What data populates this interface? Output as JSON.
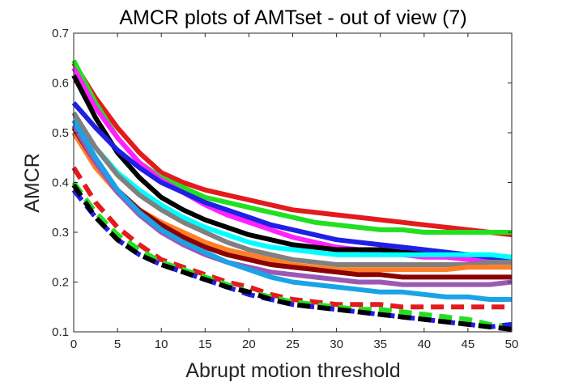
{
  "chart_data": {
    "type": "line",
    "title": "AMCR plots of AMTset - out of view (7)",
    "xlabel": "Abrupt motion threshold",
    "ylabel": "AMCR",
    "xlim": [
      0,
      50
    ],
    "ylim": [
      0.1,
      0.7
    ],
    "xticks": [
      "0",
      "5",
      "10",
      "15",
      "20",
      "25",
      "30",
      "35",
      "40",
      "45",
      "50"
    ],
    "yticks": [
      "0.1",
      "0.2",
      "0.3",
      "0.4",
      "0.5",
      "0.6",
      "0.7"
    ],
    "grid": false,
    "x": [
      0,
      2.5,
      5,
      7.5,
      10,
      12.5,
      15,
      17.5,
      20,
      22.5,
      25,
      27.5,
      30,
      32.5,
      35,
      37.5,
      40,
      42.5,
      45,
      47.5,
      50
    ],
    "series": [
      {
        "color": "#e41a1c",
        "dashed": false,
        "values": [
          0.64,
          0.57,
          0.51,
          0.46,
          0.42,
          0.4,
          0.385,
          0.375,
          0.365,
          0.355,
          0.345,
          0.34,
          0.335,
          0.33,
          0.325,
          0.32,
          0.315,
          0.31,
          0.305,
          0.3,
          0.295
        ]
      },
      {
        "color": "#22e01f",
        "dashed": false,
        "values": [
          0.645,
          0.56,
          0.49,
          0.44,
          0.41,
          0.39,
          0.37,
          0.36,
          0.35,
          0.34,
          0.33,
          0.32,
          0.315,
          0.31,
          0.305,
          0.305,
          0.3,
          0.3,
          0.3,
          0.3,
          0.3
        ]
      },
      {
        "color": "#ff22ff",
        "dashed": false,
        "values": [
          0.63,
          0.55,
          0.49,
          0.44,
          0.405,
          0.38,
          0.355,
          0.335,
          0.32,
          0.305,
          0.29,
          0.28,
          0.27,
          0.265,
          0.26,
          0.255,
          0.25,
          0.25,
          0.245,
          0.24,
          0.24
        ]
      },
      {
        "color": "#000000",
        "dashed": false,
        "values": [
          0.615,
          0.53,
          0.46,
          0.41,
          0.37,
          0.345,
          0.325,
          0.31,
          0.295,
          0.285,
          0.275,
          0.27,
          0.265,
          0.265,
          0.265,
          0.26,
          0.26,
          0.255,
          0.255,
          0.25,
          0.25
        ]
      },
      {
        "color": "#1f1fe6",
        "dashed": false,
        "values": [
          0.56,
          0.51,
          0.465,
          0.43,
          0.4,
          0.38,
          0.36,
          0.345,
          0.33,
          0.315,
          0.305,
          0.295,
          0.285,
          0.28,
          0.275,
          0.27,
          0.265,
          0.26,
          0.255,
          0.25,
          0.245
        ]
      },
      {
        "color": "#00ffff",
        "dashed": false,
        "values": [
          0.525,
          0.47,
          0.42,
          0.385,
          0.355,
          0.33,
          0.31,
          0.295,
          0.28,
          0.27,
          0.265,
          0.26,
          0.255,
          0.255,
          0.255,
          0.255,
          0.255,
          0.255,
          0.255,
          0.255,
          0.25
        ]
      },
      {
        "color": "#808080",
        "dashed": false,
        "values": [
          0.54,
          0.47,
          0.415,
          0.375,
          0.345,
          0.32,
          0.3,
          0.28,
          0.265,
          0.255,
          0.245,
          0.24,
          0.235,
          0.235,
          0.235,
          0.235,
          0.235,
          0.235,
          0.235,
          0.24,
          0.24
        ]
      },
      {
        "color": "#ff7f27",
        "dashed": false,
        "values": [
          0.5,
          0.43,
          0.38,
          0.345,
          0.32,
          0.3,
          0.28,
          0.265,
          0.255,
          0.245,
          0.235,
          0.23,
          0.225,
          0.225,
          0.225,
          0.225,
          0.225,
          0.225,
          0.23,
          0.23,
          0.23
        ]
      },
      {
        "color": "#8b0000",
        "dashed": false,
        "values": [
          0.51,
          0.44,
          0.385,
          0.345,
          0.315,
          0.29,
          0.27,
          0.255,
          0.245,
          0.235,
          0.23,
          0.225,
          0.22,
          0.215,
          0.215,
          0.21,
          0.21,
          0.21,
          0.21,
          0.21,
          0.21
        ]
      },
      {
        "color": "#9b59b6",
        "dashed": false,
        "values": [
          0.515,
          0.44,
          0.38,
          0.335,
          0.3,
          0.275,
          0.255,
          0.24,
          0.23,
          0.22,
          0.215,
          0.21,
          0.205,
          0.2,
          0.2,
          0.195,
          0.195,
          0.195,
          0.195,
          0.195,
          0.2
        ]
      },
      {
        "color": "#1aa3e6",
        "dashed": false,
        "values": [
          0.525,
          0.45,
          0.385,
          0.34,
          0.305,
          0.28,
          0.26,
          0.24,
          0.225,
          0.21,
          0.2,
          0.195,
          0.19,
          0.185,
          0.18,
          0.18,
          0.175,
          0.17,
          0.17,
          0.165,
          0.165
        ]
      },
      {
        "color": "#e41a1c",
        "dashed": true,
        "values": [
          0.43,
          0.36,
          0.31,
          0.275,
          0.245,
          0.23,
          0.215,
          0.2,
          0.19,
          0.175,
          0.165,
          0.16,
          0.155,
          0.155,
          0.155,
          0.15,
          0.15,
          0.15,
          0.15,
          0.15,
          0.15
        ]
      },
      {
        "color": "#22e01f",
        "dashed": true,
        "values": [
          0.4,
          0.34,
          0.295,
          0.265,
          0.24,
          0.225,
          0.21,
          0.195,
          0.18,
          0.17,
          0.16,
          0.155,
          0.15,
          0.145,
          0.145,
          0.14,
          0.135,
          0.13,
          0.125,
          0.115,
          0.11
        ]
      },
      {
        "color": "#1f1fe6",
        "dashed": true,
        "values": [
          0.385,
          0.33,
          0.285,
          0.255,
          0.235,
          0.22,
          0.205,
          0.19,
          0.175,
          0.165,
          0.155,
          0.15,
          0.145,
          0.14,
          0.135,
          0.13,
          0.125,
          0.12,
          0.115,
          0.11,
          0.115
        ]
      },
      {
        "color": "#000000",
        "dashed": true,
        "values": [
          0.395,
          0.33,
          0.285,
          0.255,
          0.235,
          0.22,
          0.205,
          0.19,
          0.18,
          0.165,
          0.155,
          0.15,
          0.145,
          0.14,
          0.135,
          0.13,
          0.125,
          0.12,
          0.115,
          0.11,
          0.105
        ]
      }
    ]
  }
}
